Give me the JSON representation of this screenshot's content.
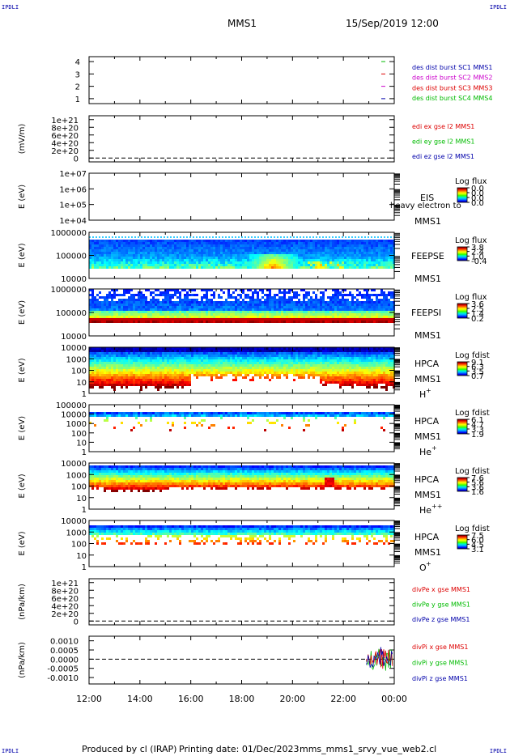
{
  "header": {
    "corner_left_top": "IPDLI",
    "corner_right_top": "IPDLI",
    "corner_left_bottom": "IPDLI",
    "corner_right_bottom": "IPDLI",
    "spacecraft": "MMS1",
    "datetime": "15/Sep/2019 12:00"
  },
  "footer": {
    "produced_by": "Produced by cl (IRAP)",
    "printing_date": "Printing date: 01/Dec/2023",
    "script_name": "mms_mms1_srvy_vue_web2.cl"
  },
  "colors": {
    "red": "#dd0000",
    "magenta": "#cc00cc",
    "green": "#00bb00",
    "blue": "#0000aa",
    "black": "#000000",
    "colorbar": [
      "#000088",
      "#0000ff",
      "#0077ff",
      "#00ccff",
      "#00ffaa",
      "#33ff00",
      "#aaff00",
      "#ffff00",
      "#ffaa00",
      "#ff4400",
      "#cc0000",
      "#880000"
    ]
  },
  "chart_data": {
    "type": "multi-panel time series and spectrograms",
    "x_axis": {
      "tick_labels": [
        "12:00",
        "14:00",
        "16:00",
        "18:00",
        "20:00",
        "22:00",
        "00:00"
      ],
      "range_hours": [
        12,
        24
      ]
    },
    "panels": [
      {
        "id": "burst",
        "kind": "line",
        "ylabel": "",
        "ytick_labels": [
          "4",
          "3",
          "2",
          "1"
        ],
        "yticks": [
          4,
          3,
          2,
          1
        ],
        "ylim": [
          0.6,
          4.4
        ],
        "legend": [
          {
            "text": "des dist burst SC1 MMS1",
            "color": "#0000aa"
          },
          {
            "text": "des dist burst SC2 MMS2",
            "color": "#cc00cc"
          },
          {
            "text": "des dist burst SC3 MMS3",
            "color": "#dd0000"
          },
          {
            "text": "des dist burst SC4 MMS4",
            "color": "#00bb00"
          }
        ],
        "markers": [
          {
            "y": 4,
            "color": "#00bb00"
          },
          {
            "y": 3,
            "color": "#dd0000"
          },
          {
            "y": 2,
            "color": "#cc00cc"
          },
          {
            "y": 1,
            "color": "#0000aa"
          }
        ]
      },
      {
        "id": "edi",
        "kind": "line",
        "ylabel": "(mV/m)",
        "ytick_labels": [
          "1e+21",
          "8e+20",
          "6e+20",
          "4e+20",
          "2e+20",
          "0"
        ],
        "yticks": [
          1e+21,
          8e+20,
          6e+20,
          4e+20,
          2e+20,
          0
        ],
        "ylim": [
          -1e+20,
          1.1e+21
        ],
        "legend": [
          {
            "text": "edi ex gse l2 MMS1",
            "color": "#dd0000"
          },
          {
            "text": "edi ey gse l2 MMS1",
            "color": "#00bb00"
          },
          {
            "text": "edi ez gse l2 MMS1",
            "color": "#0000aa"
          }
        ],
        "zero_line": true
      },
      {
        "id": "eis",
        "kind": "spectrogram",
        "ylabel": "E (eV)",
        "ytick_labels": [
          "1e+07",
          "1e+06",
          "1e+05",
          "1e+04"
        ],
        "label_lines": [
          "EIS",
          "MMS1"
        ],
        "overlay_text": "heavy electron to",
        "colorbar_title": "Log flux",
        "colorbar_ticks": [
          "0.0",
          "0.0",
          "0.0",
          "0.0"
        ]
      },
      {
        "id": "feepse",
        "kind": "spectrogram",
        "ylabel": "E (eV)",
        "ytick_labels": [
          "1000000",
          "100000",
          "10000"
        ],
        "label_lines": [
          "FEEPSE",
          "MMS1"
        ],
        "colorbar_title": "Log flux",
        "colorbar_ticks": [
          "3.8",
          "2.4",
          "1.0",
          "-0.4"
        ]
      },
      {
        "id": "feepsi",
        "kind": "spectrogram",
        "ylabel": "E (eV)",
        "ytick_labels": [
          "1000000",
          "100000",
          "10000"
        ],
        "label_lines": [
          "FEEPSI",
          "MMS1"
        ],
        "colorbar_title": "Log flux",
        "colorbar_ticks": [
          "3.6",
          "2.5",
          "1.4",
          "0.2"
        ]
      },
      {
        "id": "hpca_h",
        "kind": "spectrogram",
        "ylabel": "E (eV)",
        "ytick_labels": [
          "10000",
          "1000",
          "100",
          "10",
          "1"
        ],
        "label_lines": [
          "HPCA",
          "MMS1"
        ],
        "species": "H",
        "species_sup": "+",
        "colorbar_title": "Log fdist",
        "colorbar_ticks": [
          "9.1",
          "6.3",
          "3.5",
          "0.7"
        ]
      },
      {
        "id": "hpca_he",
        "kind": "spectrogram",
        "ylabel": "E (eV)",
        "ytick_labels": [
          "100000",
          "10000",
          "1000",
          "100",
          "10",
          "1"
        ],
        "label_lines": [
          "HPCA",
          "MMS1"
        ],
        "species": "He",
        "species_sup": "+",
        "colorbar_title": "Log fdist",
        "colorbar_ticks": [
          "6.1",
          "4.7",
          "3.3",
          "1.9"
        ]
      },
      {
        "id": "hpca_hepp",
        "kind": "spectrogram",
        "ylabel": "E (eV)",
        "ytick_labels": [
          "10000",
          "1000",
          "100",
          "10",
          "1"
        ],
        "label_lines": [
          "HPCA",
          "MMS1"
        ],
        "species": "He",
        "species_sup": "++",
        "colorbar_title": "Log fdist",
        "colorbar_ticks": [
          "7.6",
          "5.6",
          "3.6",
          "1.6"
        ]
      },
      {
        "id": "hpca_o",
        "kind": "spectrogram",
        "ylabel": "E (eV)",
        "ytick_labels": [
          "10000",
          "1000",
          "100",
          "10",
          "1"
        ],
        "label_lines": [
          "HPCA",
          "MMS1"
        ],
        "species": "O",
        "species_sup": "+",
        "colorbar_title": "Log fdist",
        "colorbar_ticks": [
          "7.5",
          "6.0",
          "4.5",
          "3.1"
        ]
      },
      {
        "id": "divpe",
        "kind": "line",
        "ylabel": "(nPa/km)",
        "ytick_labels": [
          "1e+21",
          "8e+20",
          "6e+20",
          "4e+20",
          "2e+20",
          "0"
        ],
        "yticks": [
          1e+21,
          8e+20,
          6e+20,
          4e+20,
          2e+20,
          0
        ],
        "ylim": [
          -1e+20,
          1.1e+21
        ],
        "legend": [
          {
            "text": "divPe x gse MMS1",
            "color": "#dd0000"
          },
          {
            "text": "divPe y gse MMS1",
            "color": "#00bb00"
          },
          {
            "text": "divPe z gse MMS1",
            "color": "#0000aa"
          }
        ],
        "zero_line": true
      },
      {
        "id": "divpi",
        "kind": "line",
        "ylabel": "(nPa/km)",
        "ytick_labels": [
          "0.0010",
          "0.0005",
          "0.0000",
          "-0.0005",
          "-0.0010"
        ],
        "yticks": [
          0.001,
          0.0005,
          0,
          -0.0005,
          -0.001
        ],
        "ylim": [
          -0.00135,
          0.00125
        ],
        "legend": [
          {
            "text": "divPi x gse MMS1",
            "color": "#dd0000"
          },
          {
            "text": "divPi y gse MMS1",
            "color": "#00bb00"
          },
          {
            "text": "divPi z gse MMS1",
            "color": "#0000aa"
          }
        ],
        "zero_line": true,
        "data_start_hour": 22.9
      }
    ]
  }
}
